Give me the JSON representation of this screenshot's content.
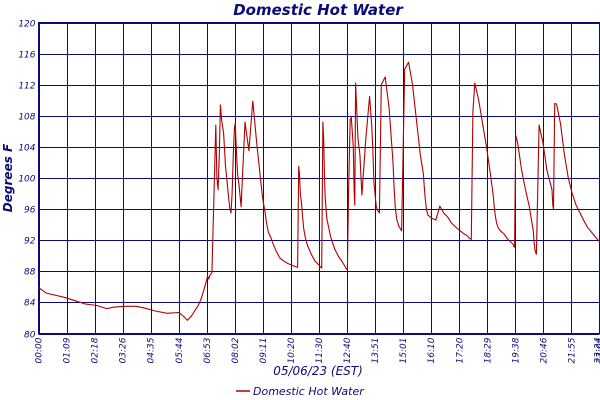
{
  "chart_data": {
    "type": "line",
    "title": "Domestic Hot Water",
    "xlabel": "05/06/23 (EST)",
    "ylabel": "Degrees F",
    "ylim": [
      80,
      120
    ],
    "xlim_minutes": [
      0,
      1440
    ],
    "yticks": [
      "80",
      "84",
      "88",
      "92",
      "96",
      "100",
      "104",
      "108",
      "112",
      "116",
      "120"
    ],
    "xticks": [
      "00:00",
      "01:09",
      "02:18",
      "03:26",
      "04:35",
      "05:44",
      "06:53",
      "08:02",
      "09:11",
      "10:20",
      "11:30",
      "12:40",
      "13:51",
      "15:01",
      "16:10",
      "17:20",
      "18:29",
      "19:38",
      "20:46",
      "21:55",
      "23:04",
      "23:24"
    ],
    "grid": true,
    "colors": {
      "series": "#b00000",
      "grid": "#0b0b78",
      "text": "#0b0b78"
    },
    "legend": "bottom-center",
    "series": [
      {
        "name": "Domestic Hot Water",
        "x_minutes": [
          0,
          20,
          45,
          70,
          95,
          120,
          150,
          175,
          195,
          220,
          250,
          270,
          300,
          330,
          360,
          375,
          382,
          392,
          402,
          410,
          418,
          422,
          425,
          429,
          432,
          434,
          437,
          440,
          445,
          450,
          455,
          458,
          461,
          464,
          467,
          470,
          475,
          480,
          485,
          488,
          491,
          494,
          497,
          500,
          503,
          505,
          508,
          511,
          515,
          520,
          530,
          540,
          550,
          560,
          575,
          580,
          582,
          585,
          590,
          596,
          600,
          605,
          610,
          620,
          630,
          640,
          650,
          660,
          665,
          668,
          670,
          672,
          675,
          678,
          681,
          685,
          690,
          700,
          710,
          720,
          727,
          730,
          732,
          734,
          736,
          740,
          750,
          760,
          770,
          780,
          787,
          790,
          793,
          796,
          800,
          803,
          806,
          808,
          810,
          812,
          814,
          817,
          820,
          825,
          830,
          840,
          850,
          855,
          858,
          861,
          864,
          867,
          870,
          875,
          880,
          890,
          900,
          910,
          913,
          916,
          920,
          925,
          932,
          940,
          950,
          960,
          970,
          980,
          988,
          990,
          992,
          994,
          996,
          1000,
          1010,
          1020,
          1030,
          1040,
          1050,
          1060,
          1075,
          1090,
          1102,
          1105,
          1108,
          1111,
          1115,
          1120,
          1130,
          1140,
          1150,
          1160,
          1167,
          1170,
          1173,
          1176,
          1180,
          1186,
          1195,
          1205,
          1218,
          1220,
          1222,
          1225,
          1230,
          1240,
          1250,
          1260,
          1265,
          1270,
          1272,
          1275,
          1278,
          1285,
          1295,
          1305,
          1318,
          1320,
          1322,
          1325,
          1330,
          1340,
          1350,
          1360,
          1370,
          1380,
          1390,
          1400,
          1410,
          1420,
          1430,
          1440
        ],
        "values": [
          85.9,
          85.2,
          84.9,
          84.6,
          84.2,
          83.8,
          83.6,
          83.2,
          83.4,
          83.5,
          83.5,
          83.3,
          82.9,
          82.6,
          82.7,
          82.1,
          81.7,
          82.2,
          83.0,
          83.6,
          84.5,
          85.2,
          85.7,
          86.4,
          87.0,
          87.4,
          87.0,
          87.5,
          87.8,
          97.0,
          106.8,
          100.0,
          98.5,
          103.0,
          109.4,
          107.5,
          105.8,
          101.5,
          99.1,
          97.5,
          96.1,
          95.5,
          98.0,
          103.0,
          106.5,
          107.0,
          103.5,
          100.5,
          99.0,
          96.3,
          107.2,
          103.5,
          109.9,
          104.5,
          97.5,
          96.0,
          95.5,
          94.3,
          93.0,
          92.4,
          91.8,
          91.2,
          90.6,
          89.7,
          89.3,
          89.0,
          88.8,
          88.6,
          88.5,
          101.5,
          100.5,
          98.0,
          96.8,
          95.0,
          93.4,
          92.3,
          91.4,
          90.2,
          89.3,
          88.8,
          88.4,
          107.2,
          105.0,
          100.0,
          97.5,
          94.8,
          92.4,
          90.9,
          89.9,
          89.2,
          88.6,
          88.3,
          88.4,
          98.5,
          107.5,
          107.8,
          105.5,
          104.0,
          98.5,
          96.5,
          112.2,
          108.5,
          105.0,
          103.0,
          97.8,
          105.0,
          110.5,
          107.0,
          103.8,
          99.5,
          97.8,
          96.3,
          95.9,
          95.5,
          112.0,
          113.0,
          109.0,
          102.0,
          98.5,
          96.0,
          94.6,
          93.8,
          93.2,
          114.0,
          114.9,
          112.0,
          107.5,
          103.0,
          100.5,
          99.0,
          97.7,
          96.8,
          95.9,
          95.2,
          94.8,
          94.6,
          96.4,
          95.5,
          95.0,
          94.2,
          93.5,
          92.9,
          92.5,
          92.3,
          92.2,
          92.1,
          108.5,
          112.2,
          110.0,
          107.0,
          104.0,
          100.5,
          97.9,
          96.2,
          95.0,
          94.2,
          93.6,
          93.2,
          92.8,
          92.1,
          91.5,
          91.2,
          91.1,
          105.5,
          104.5,
          101.0,
          98.5,
          96.3,
          94.7,
          93.2,
          91.8,
          90.6,
          90.2,
          106.8,
          104.5,
          101.0,
          98.5,
          96.5,
          96.0,
          109.6,
          109.5,
          107.0,
          103.0,
          100.0,
          98.0,
          96.5,
          95.5,
          94.5,
          93.6,
          93.0,
          92.4,
          91.8
        ]
      }
    ]
  }
}
